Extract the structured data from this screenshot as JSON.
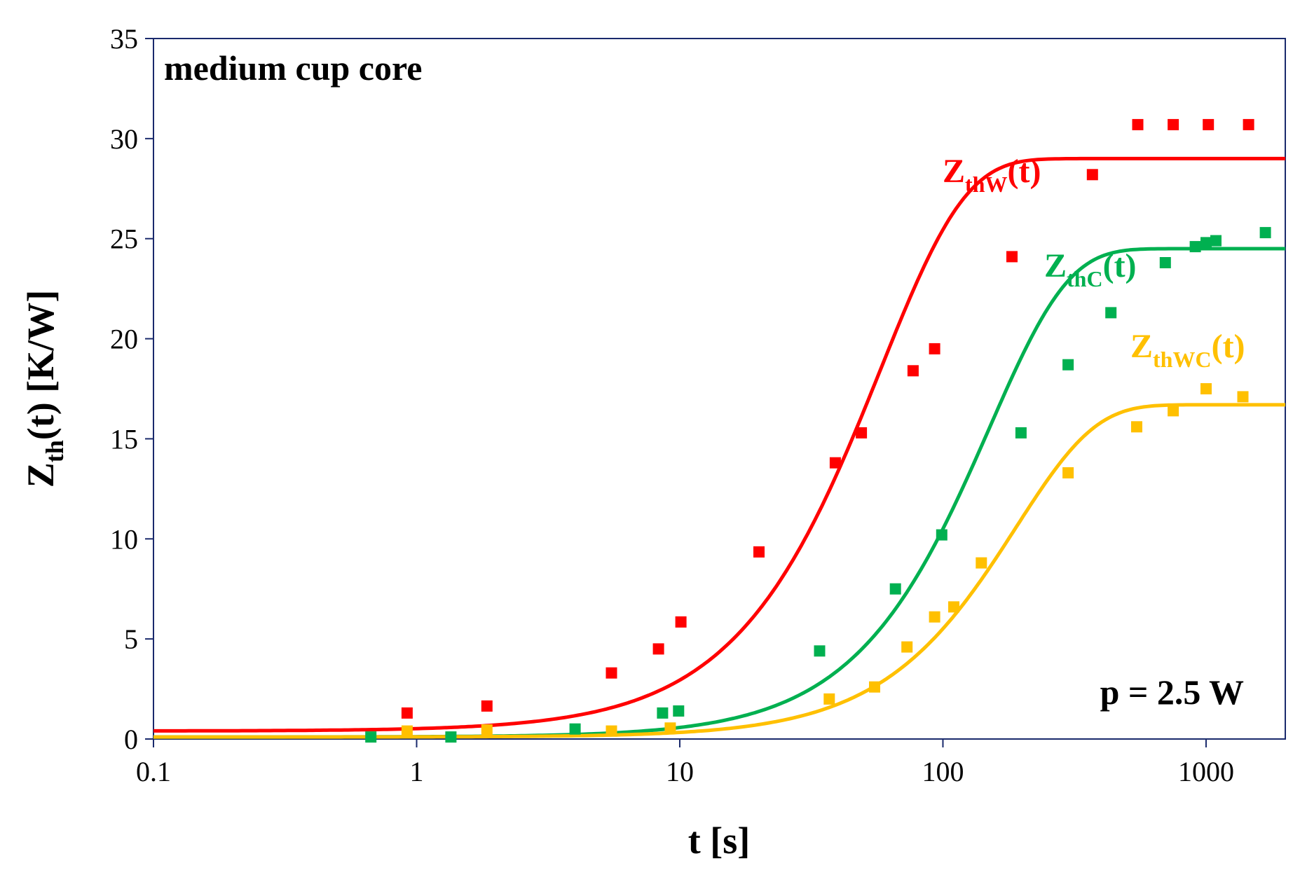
{
  "chart_data": {
    "type": "scatter",
    "title": "medium cup core",
    "annotation": "p = 2.5 W",
    "xlabel": "t [s]",
    "ylabel": {
      "main": "Z",
      "sub": "th",
      "rest": "(t) [K/W]"
    },
    "xscale": "log",
    "xlim": [
      0.1,
      2000
    ],
    "ylim": [
      0,
      35
    ],
    "x_ticks": [
      0.1,
      1,
      10,
      100,
      1000
    ],
    "x_tick_labels": [
      "0.1",
      "1",
      "10",
      "100",
      "1000"
    ],
    "y_ticks": [
      0,
      5,
      10,
      15,
      20,
      25,
      30,
      35
    ],
    "y_tick_labels": [
      "0",
      "5",
      "10",
      "15",
      "20",
      "25",
      "30",
      "35"
    ],
    "grid": false,
    "series": [
      {
        "name": "ZthW(t)",
        "label": {
          "main": "Z",
          "sub": "thW",
          "rest": "(t)"
        },
        "color": "#ff0000",
        "points": [
          [
            0.92,
            1.3
          ],
          [
            1.85,
            1.65
          ],
          [
            5.5,
            3.3
          ],
          [
            8.3,
            4.5
          ],
          [
            10.1,
            5.85
          ],
          [
            20,
            9.35
          ],
          [
            39,
            13.8
          ],
          [
            49,
            15.3
          ],
          [
            77,
            18.4
          ],
          [
            93,
            19.5
          ],
          [
            183,
            24.1
          ],
          [
            370,
            28.2
          ],
          [
            550,
            30.7
          ],
          [
            750,
            30.7
          ],
          [
            1020,
            30.7
          ],
          [
            1450,
            30.7
          ]
        ],
        "fit": {
          "baseline": 0.4,
          "amplitude": 28.6,
          "tau": 58,
          "n": 1.35
        }
      },
      {
        "name": "ZthC(t)",
        "label": {
          "main": "Z",
          "sub": "thC",
          "rest": "(t)"
        },
        "color": "#00b050",
        "points": [
          [
            0.67,
            0.1
          ],
          [
            1.35,
            0.1
          ],
          [
            4.0,
            0.5
          ],
          [
            8.6,
            1.3
          ],
          [
            9.9,
            1.4
          ],
          [
            34,
            4.4
          ],
          [
            66,
            7.5
          ],
          [
            99,
            10.2
          ],
          [
            198,
            15.3
          ],
          [
            299,
            18.7
          ],
          [
            435,
            21.3
          ],
          [
            700,
            23.8
          ],
          [
            910,
            24.6
          ],
          [
            1000,
            24.8
          ],
          [
            1090,
            24.9
          ],
          [
            1680,
            25.3
          ]
        ],
        "fit": {
          "baseline": 0.1,
          "amplitude": 24.4,
          "tau": 150,
          "n": 1.45
        }
      },
      {
        "name": "ZthWC(t)",
        "label": {
          "main": "Z",
          "sub": "thWC",
          "rest": "(t)"
        },
        "color": "#ffc000",
        "points": [
          [
            0.92,
            0.4
          ],
          [
            1.85,
            0.45
          ],
          [
            5.5,
            0.4
          ],
          [
            9.2,
            0.55
          ],
          [
            37,
            2.0
          ],
          [
            55,
            2.6
          ],
          [
            73,
            4.6
          ],
          [
            93,
            6.1
          ],
          [
            110,
            6.6
          ],
          [
            140,
            8.8
          ],
          [
            299,
            13.3
          ],
          [
            545,
            15.6
          ],
          [
            750,
            16.4
          ],
          [
            1000,
            17.5
          ],
          [
            1380,
            17.1
          ]
        ],
        "fit": {
          "baseline": 0.1,
          "amplitude": 16.6,
          "tau": 190,
          "n": 1.45
        }
      }
    ]
  }
}
